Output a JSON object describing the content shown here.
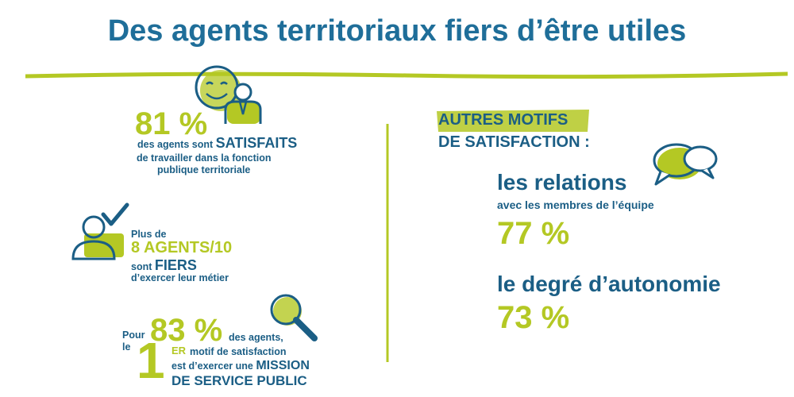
{
  "title": "Des agents territoriaux fiers d’être utiles",
  "colors": {
    "blue": "#1b5e85",
    "green": "#b4c824"
  },
  "stat1": {
    "number": "81 %",
    "line1_pre": "des agents sont ",
    "line1_emph": "SATISFAITS",
    "line2": "de travailler dans la fonction",
    "line3": "publique territoriale",
    "icons": [
      "smiley-icon",
      "agent-icon"
    ]
  },
  "stat2": {
    "line1": "Plus de",
    "number": "8 AGENTS/10",
    "line3_pre": "sont ",
    "line3_emph": "FIERS",
    "line4": "d’exercer leur métier",
    "icons": [
      "person-check-icon"
    ]
  },
  "stat3": {
    "pour": "Pour",
    "number": "83 %",
    "des_agents": "des agents,",
    "le": "le",
    "rank_digit": "1",
    "rank_suffix": "ER",
    "line1": "motif de satisfaction",
    "line2_pre": "est d’exercer une ",
    "line2_emph": "MISSION",
    "line3": "DE SERVICE PUBLIC",
    "icons": [
      "magnifier-icon"
    ]
  },
  "right": {
    "heading1": "AUTRES MOTIFS",
    "heading2": "DE SATISFACTION :",
    "item1_title": "les relations",
    "item1_sub": "avec les membres de l’équipe",
    "item1_pct": "77 %",
    "item2_title": "le degré d’autonomie",
    "item2_pct": "73 %",
    "icons": [
      "speech-bubbles-icon"
    ]
  }
}
